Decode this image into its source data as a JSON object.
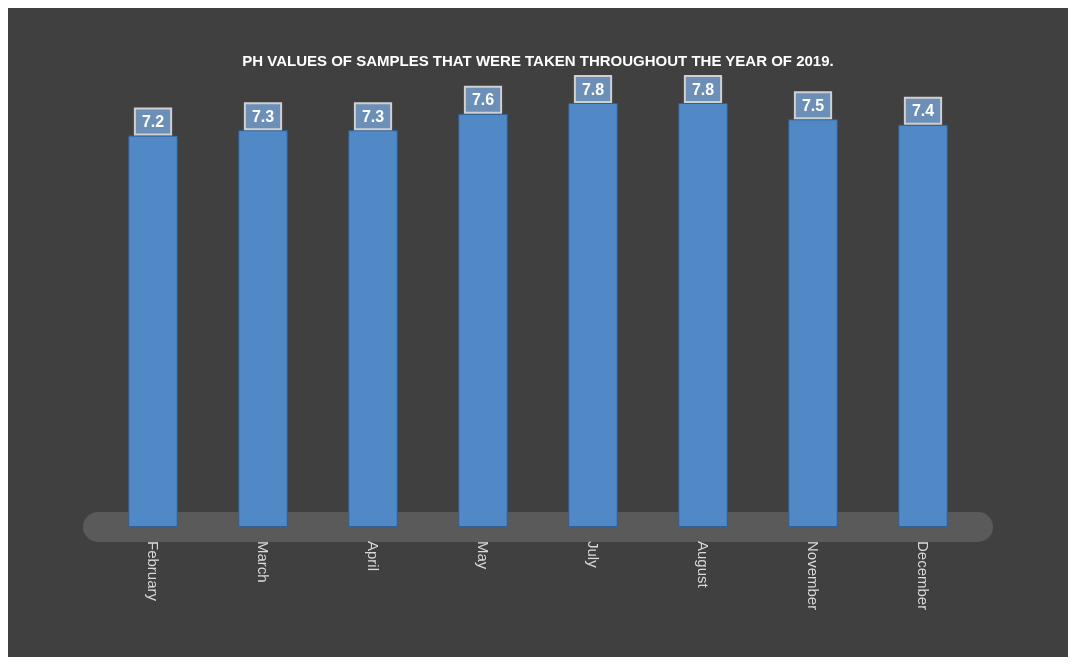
{
  "chart_data": {
    "type": "bar",
    "title": "PH VALUES OF SAMPLES THAT WERE TAKEN THROUGHOUT THE YEAR OF 2019.",
    "categories": [
      "February",
      "March",
      "April",
      "May",
      "July",
      "August",
      "November",
      "December"
    ],
    "values": [
      7.2,
      7.3,
      7.3,
      7.6,
      7.8,
      7.8,
      7.5,
      7.4
    ],
    "color": "#5089c6",
    "data_labels": true
  }
}
